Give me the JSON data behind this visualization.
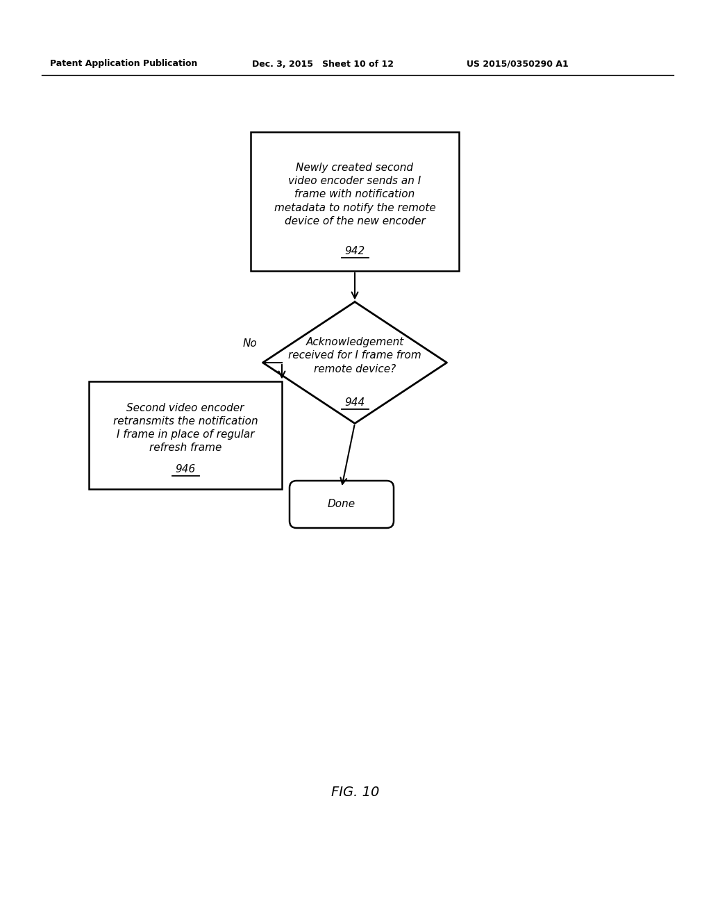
{
  "bg_color": "#ffffff",
  "header_left": "Patent Application Publication",
  "header_mid": "Dec. 3, 2015   Sheet 10 of 12",
  "header_right": "US 2015/0350290 A1",
  "fig_label": "FIG. 10",
  "box942_text": "Newly created second\nvideo encoder sends an I\nframe with notification\nmetadata to notify the remote\ndevice of the new encoder",
  "box942_label": "942",
  "diamond944_text": "Acknowledgement\nreceived for I frame from\nremote device?",
  "diamond944_label": "944",
  "box946_text": "Second video encoder\nretransmits the notification\nI frame in place of regular\nrefresh frame",
  "box946_label": "946",
  "done_text": "Done",
  "no_label": "No",
  "header_fontsize": 9,
  "body_fontsize": 11,
  "fig_fontsize": 14
}
